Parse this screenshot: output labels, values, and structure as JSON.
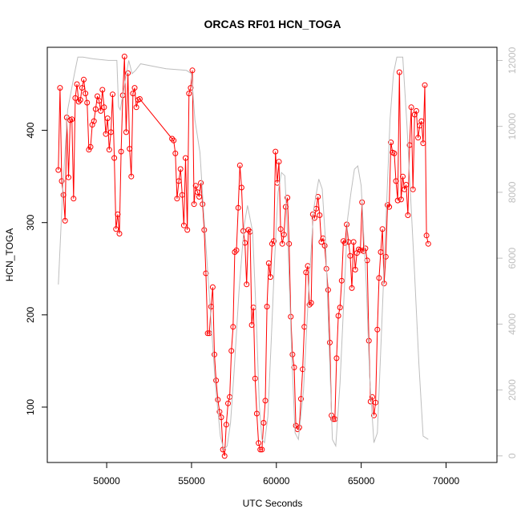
{
  "chart_data": {
    "type": "line",
    "title": "ORCAS RF01 HCN_TOGA",
    "xlabel": "UTC Seconds",
    "ylabel": "HCN_TOGA",
    "xlim": [
      46500,
      73000
    ],
    "ylim": [
      40,
      490
    ],
    "y2lim": [
      -200,
      12400
    ],
    "x_ticks": [
      50000,
      55000,
      60000,
      65000,
      70000
    ],
    "y_ticks": [
      100,
      200,
      300,
      400
    ],
    "y2_ticks": [
      0,
      2000,
      4000,
      6000,
      8000,
      10000,
      12000
    ],
    "grid": false,
    "series": [
      {
        "type": "line+markers",
        "color": "#ff0000",
        "points": [
          [
            47150,
            357
          ],
          [
            47250,
            446
          ],
          [
            47350,
            345
          ],
          [
            47450,
            330
          ],
          [
            47550,
            302
          ],
          [
            47650,
            414
          ],
          [
            47750,
            349
          ],
          [
            47850,
            411
          ],
          [
            47950,
            412
          ],
          [
            48050,
            326
          ],
          [
            48150,
            435
          ],
          [
            48250,
            450
          ],
          [
            48350,
            431
          ],
          [
            48450,
            433
          ],
          [
            48550,
            446
          ],
          [
            48650,
            455
          ],
          [
            48750,
            440
          ],
          [
            48850,
            430
          ],
          [
            48950,
            379
          ],
          [
            49050,
            382
          ],
          [
            49150,
            406
          ],
          [
            49250,
            410
          ],
          [
            49350,
            423
          ],
          [
            49450,
            437
          ],
          [
            49550,
            432
          ],
          [
            49650,
            421
          ],
          [
            49750,
            444
          ],
          [
            49850,
            425
          ],
          [
            49950,
            396
          ],
          [
            50050,
            413
          ],
          [
            50150,
            379
          ],
          [
            50250,
            398
          ],
          [
            50350,
            439
          ],
          [
            50450,
            370
          ],
          [
            50550,
            293
          ],
          [
            50650,
            309
          ],
          [
            50750,
            288
          ],
          [
            50850,
            377
          ],
          [
            50950,
            438
          ],
          [
            51050,
            480
          ],
          [
            51150,
            398
          ],
          [
            51250,
            462
          ],
          [
            51350,
            380
          ],
          [
            51450,
            350
          ],
          [
            51550,
            440
          ],
          [
            51650,
            446
          ],
          [
            51750,
            425
          ],
          [
            51850,
            433
          ],
          [
            51950,
            434
          ],
          [
            53850,
            391
          ],
          [
            53950,
            389
          ],
          [
            54050,
            375
          ],
          [
            54150,
            326
          ],
          [
            54250,
            345
          ],
          [
            54350,
            358
          ],
          [
            54450,
            330
          ],
          [
            54550,
            297
          ],
          [
            54650,
            370
          ],
          [
            54750,
            292
          ],
          [
            54850,
            440
          ],
          [
            54950,
            446
          ],
          [
            55050,
            465
          ],
          [
            55150,
            320
          ],
          [
            55250,
            340
          ],
          [
            55350,
            333
          ],
          [
            55450,
            328
          ],
          [
            55550,
            343
          ],
          [
            55650,
            320
          ],
          [
            55750,
            292
          ],
          [
            55850,
            245
          ],
          [
            55950,
            180
          ],
          [
            56050,
            180
          ],
          [
            56150,
            209
          ],
          [
            56250,
            230
          ],
          [
            56350,
            157
          ],
          [
            56450,
            129
          ],
          [
            56550,
            108
          ],
          [
            56650,
            95
          ],
          [
            56750,
            89
          ],
          [
            56850,
            54
          ],
          [
            56950,
            47
          ],
          [
            57050,
            81
          ],
          [
            57150,
            104
          ],
          [
            57250,
            111
          ],
          [
            57350,
            161
          ],
          [
            57450,
            187
          ],
          [
            57550,
            268
          ],
          [
            57650,
            270
          ],
          [
            57750,
            316
          ],
          [
            57850,
            362
          ],
          [
            57950,
            338
          ],
          [
            58050,
            291
          ],
          [
            58150,
            278
          ],
          [
            58250,
            233
          ],
          [
            58350,
            292
          ],
          [
            58450,
            290
          ],
          [
            58550,
            189
          ],
          [
            58650,
            208
          ],
          [
            58750,
            131
          ],
          [
            58850,
            93
          ],
          [
            58950,
            61
          ],
          [
            59050,
            54
          ],
          [
            59150,
            54
          ],
          [
            59250,
            83
          ],
          [
            59350,
            107
          ],
          [
            59450,
            209
          ],
          [
            59550,
            256
          ],
          [
            59650,
            241
          ],
          [
            59750,
            277
          ],
          [
            59850,
            280
          ],
          [
            59950,
            377
          ],
          [
            60050,
            343
          ],
          [
            60150,
            366
          ],
          [
            60250,
            293
          ],
          [
            60350,
            277
          ],
          [
            60450,
            287
          ],
          [
            60550,
            317
          ],
          [
            60650,
            327
          ],
          [
            60750,
            277
          ],
          [
            60850,
            198
          ],
          [
            60950,
            157
          ],
          [
            61050,
            143
          ],
          [
            61150,
            80
          ],
          [
            61250,
            76
          ],
          [
            61350,
            78
          ],
          [
            61450,
            109
          ],
          [
            61550,
            141
          ],
          [
            61650,
            187
          ],
          [
            61750,
            246
          ],
          [
            61850,
            253
          ],
          [
            61950,
            211
          ],
          [
            62050,
            213
          ],
          [
            62150,
            309
          ],
          [
            62250,
            305
          ],
          [
            62350,
            315
          ],
          [
            62450,
            328
          ],
          [
            62550,
            308
          ],
          [
            62650,
            279
          ],
          [
            62750,
            283
          ],
          [
            62850,
            275
          ],
          [
            62950,
            250
          ],
          [
            63050,
            227
          ],
          [
            63150,
            170
          ],
          [
            63250,
            91
          ],
          [
            63350,
            87
          ],
          [
            63450,
            87
          ],
          [
            63550,
            153
          ],
          [
            63650,
            199
          ],
          [
            63750,
            208
          ],
          [
            63850,
            237
          ],
          [
            63950,
            280
          ],
          [
            64050,
            278
          ],
          [
            64150,
            298
          ],
          [
            64250,
            279
          ],
          [
            64350,
            264
          ],
          [
            64450,
            229
          ],
          [
            64550,
            279
          ],
          [
            64650,
            249
          ],
          [
            64750,
            267
          ],
          [
            64850,
            271
          ],
          [
            64950,
            270
          ],
          [
            65050,
            322
          ],
          [
            65150,
            269
          ],
          [
            65250,
            272
          ],
          [
            65350,
            259
          ],
          [
            65450,
            172
          ],
          [
            65550,
            106
          ],
          [
            65650,
            111
          ],
          [
            65750,
            91
          ],
          [
            65850,
            105
          ],
          [
            65950,
            184
          ],
          [
            66050,
            240
          ],
          [
            66150,
            268
          ],
          [
            66250,
            293
          ],
          [
            66350,
            234
          ],
          [
            66450,
            263
          ],
          [
            66550,
            319
          ],
          [
            66650,
            317
          ],
          [
            66750,
            387
          ],
          [
            66850,
            376
          ],
          [
            66950,
            375
          ],
          [
            67050,
            345
          ],
          [
            67150,
            324
          ],
          [
            67250,
            463
          ],
          [
            67350,
            325
          ],
          [
            67450,
            350
          ],
          [
            67550,
            336
          ],
          [
            67650,
            341
          ],
          [
            67750,
            308
          ],
          [
            67850,
            384
          ],
          [
            67950,
            425
          ],
          [
            68050,
            336
          ],
          [
            68150,
            417
          ],
          [
            68250,
            421
          ],
          [
            68350,
            392
          ],
          [
            68450,
            405
          ],
          [
            68550,
            410
          ],
          [
            68650,
            386
          ],
          [
            68750,
            449
          ],
          [
            68850,
            286
          ],
          [
            68950,
            277
          ]
        ]
      },
      {
        "type": "line",
        "color": "#bebebe",
        "axis": "right",
        "points": [
          [
            47150,
            5200
          ],
          [
            47400,
            8000
          ],
          [
            47700,
            10500
          ],
          [
            48100,
            11600
          ],
          [
            48300,
            12100
          ],
          [
            48600,
            12100
          ],
          [
            49200,
            12050
          ],
          [
            50100,
            12000
          ],
          [
            50600,
            12000
          ],
          [
            50700,
            10600
          ],
          [
            50800,
            10500
          ],
          [
            51100,
            11400
          ],
          [
            51300,
            12000
          ],
          [
            51500,
            11600
          ],
          [
            51700,
            11700
          ],
          [
            52000,
            11900
          ],
          [
            53000,
            11800
          ],
          [
            53500,
            11750
          ],
          [
            54700,
            11700
          ],
          [
            55000,
            11600
          ],
          [
            55200,
            10200
          ],
          [
            55500,
            9200
          ],
          [
            55700,
            7500
          ],
          [
            56100,
            4500
          ],
          [
            56400,
            2200
          ],
          [
            56700,
            600
          ],
          [
            56900,
            200
          ],
          [
            57100,
            300
          ],
          [
            57300,
            1000
          ],
          [
            57500,
            2500
          ],
          [
            57800,
            5000
          ],
          [
            58100,
            7000
          ],
          [
            58300,
            7600
          ],
          [
            58600,
            6800
          ],
          [
            58800,
            4400
          ],
          [
            59000,
            1500
          ],
          [
            59150,
            500
          ],
          [
            59300,
            400
          ],
          [
            59500,
            1200
          ],
          [
            59700,
            3500
          ],
          [
            59900,
            6000
          ],
          [
            60100,
            8000
          ],
          [
            60300,
            8600
          ],
          [
            60500,
            8500
          ],
          [
            60700,
            6200
          ],
          [
            60900,
            3200
          ],
          [
            61100,
            700
          ],
          [
            61300,
            500
          ],
          [
            61600,
            2000
          ],
          [
            61900,
            5000
          ],
          [
            62200,
            7500
          ],
          [
            62500,
            8400
          ],
          [
            62700,
            8100
          ],
          [
            62900,
            6500
          ],
          [
            63100,
            3500
          ],
          [
            63300,
            500
          ],
          [
            63500,
            300
          ],
          [
            63750,
            2200
          ],
          [
            64000,
            5000
          ],
          [
            64200,
            7200
          ],
          [
            64400,
            8000
          ],
          [
            64600,
            8700
          ],
          [
            64800,
            8800
          ],
          [
            65000,
            8200
          ],
          [
            65300,
            5200
          ],
          [
            65500,
            2400
          ],
          [
            65750,
            400
          ],
          [
            65950,
            700
          ],
          [
            66200,
            3800
          ],
          [
            66450,
            7000
          ],
          [
            66700,
            10200
          ],
          [
            66900,
            11600
          ],
          [
            67100,
            12100
          ],
          [
            67450,
            12100
          ],
          [
            67700,
            10000
          ],
          [
            67900,
            8000
          ],
          [
            68150,
            5500
          ],
          [
            68400,
            2800
          ],
          [
            68650,
            600
          ],
          [
            68950,
            500
          ]
        ]
      }
    ]
  }
}
